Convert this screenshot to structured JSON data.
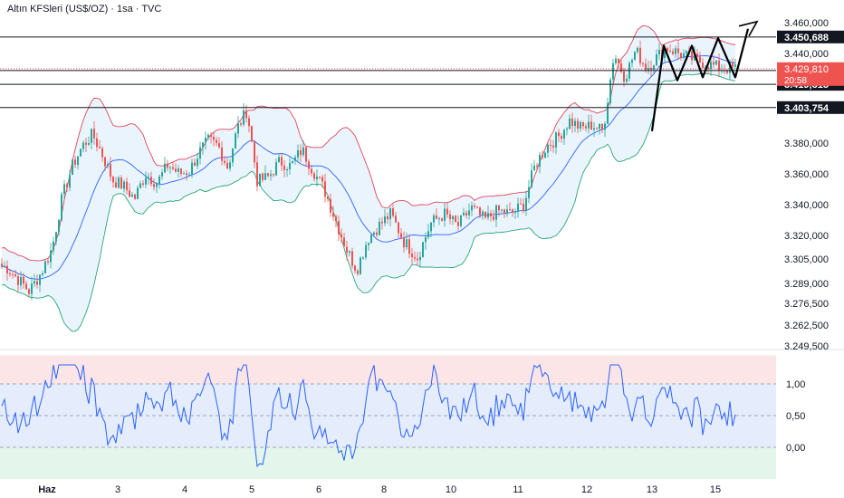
{
  "header": {
    "title": "Altın KFSleri (US$/OZ) · 1sa · TVC"
  },
  "colors": {
    "up": "#26a69a",
    "down": "#ef5350",
    "band_upper": "#e0455a",
    "band_lower": "#2aa776",
    "band_mid": "#2962ff",
    "band_fill": "#e6f2fb",
    "osc": "#2962ff",
    "price_tag": "#ef5350",
    "grid": "#f0f3fa",
    "axis_text": "#131722"
  },
  "chart_data": [
    {
      "type": "candlestick",
      "title": "Altın KFSleri (US$/OZ) · 1sa · TVC",
      "x_ticks": [
        "Haz",
        "3",
        "4",
        "5",
        "6",
        "8",
        "10",
        "11",
        "12",
        "13",
        "15"
      ],
      "y_ticks": [
        "3.460,000",
        "3.440,000",
        "3.380,000",
        "3.360,000",
        "3.340,000",
        "3.320,000",
        "3.305,000",
        "3.289,000",
        "3.276,500",
        "3.262,500",
        "3.249,500"
      ],
      "y_scale": [
        {
          "price": 3460,
          "label": "3.460,000"
        },
        {
          "price": 3440,
          "label": "3.440,000"
        },
        {
          "price": 3380,
          "label": "3.380,000"
        },
        {
          "price": 3360,
          "label": "3.360,000"
        },
        {
          "price": 3340,
          "label": "3.340,000"
        },
        {
          "price": 3320,
          "label": "3.320,000"
        },
        {
          "price": 3305,
          "label": "3.305,000"
        },
        {
          "price": 3289,
          "label": "3.289,000"
        },
        {
          "price": 3276.5,
          "label": "3.276,500"
        },
        {
          "price": 3262.5,
          "label": "3.262,500"
        },
        {
          "price": 3249.5,
          "label": "3.249,500"
        }
      ],
      "horizontal_levels": [
        {
          "price": 3450.688,
          "label": "3.450,688"
        },
        {
          "price": 3428.547,
          "label": "3.428,547"
        },
        {
          "price": 3419.313,
          "label": "3.419,313"
        },
        {
          "price": 3403.754,
          "label": "3.403,754"
        }
      ],
      "current_price": {
        "price": 3429.81,
        "label": "3.429,810",
        "countdown": "20:58"
      },
      "closes_by_day": [
        {
          "day": "Haz",
          "closes": [
            3300,
            3292,
            3284,
            3296
          ]
        },
        {
          "day": "3",
          "closes": [
            3312,
            3345,
            3365,
            3378,
            3386,
            3372,
            3356
          ]
        },
        {
          "day": "4",
          "closes": [
            3352,
            3344,
            3360,
            3354,
            3366,
            3360
          ]
        },
        {
          "day": "5",
          "closes": [
            3362,
            3374,
            3382,
            3378,
            3364,
            3390,
            3402
          ]
        },
        {
          "day": "6",
          "closes": [
            3355,
            3358,
            3368,
            3365,
            3376,
            3362
          ]
        },
        {
          "day": "8",
          "closes": [
            3350,
            3331,
            3312,
            3298,
            3318,
            3326
          ]
        },
        {
          "day": "10",
          "closes": [
            3334,
            3316,
            3306,
            3328,
            3334
          ]
        },
        {
          "day": "11",
          "closes": [
            3326,
            3338,
            3330,
            3336,
            3334
          ]
        },
        {
          "day": "12",
          "closes": [
            3340,
            3366,
            3378,
            3384,
            3395,
            3390
          ]
        },
        {
          "day": "13",
          "closes": [
            3392,
            3388,
            3440,
            3424,
            3442,
            3430
          ]
        },
        {
          "day": "15",
          "closes": [
            3444,
            3436,
            3430
          ]
        }
      ],
      "bollinger": {
        "upper": "red",
        "lower": "green",
        "middle": "blue"
      },
      "annotation": "zigzag pattern with upward arrow"
    },
    {
      "type": "line",
      "y_ticks": [
        "1,00",
        "0,50",
        "0,00"
      ],
      "y_values": [
        1.0,
        0.5,
        0.0
      ],
      "zones": [
        {
          "from": 1.0,
          "to": 1.45,
          "color": "#fbe5e6"
        },
        {
          "from": 0.0,
          "to": 1.0,
          "color": "#e5ecfc"
        },
        {
          "from": -0.5,
          "to": 0.0,
          "color": "#e4f5ec"
        }
      ]
    }
  ]
}
